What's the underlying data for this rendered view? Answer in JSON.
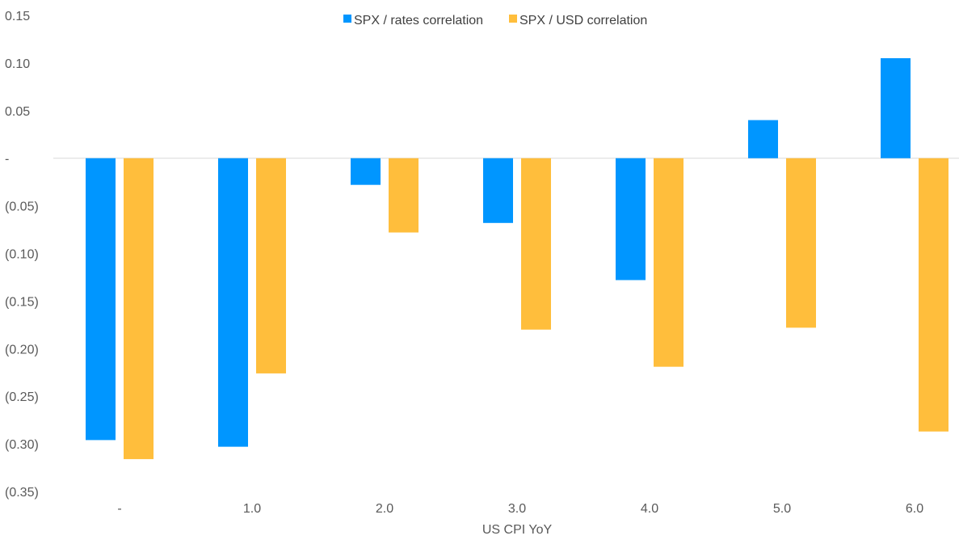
{
  "chart_data": {
    "type": "bar",
    "title": "",
    "xlabel": "US CPI YoY",
    "ylabel": "",
    "categories": [
      "-",
      "1.0",
      "2.0",
      "3.0",
      "4.0",
      "5.0",
      "6.0"
    ],
    "ylim": [
      -0.35,
      0.15
    ],
    "yticks": [
      0.15,
      0.1,
      0.05,
      0,
      -0.05,
      -0.1,
      -0.15,
      -0.2,
      -0.25,
      -0.3,
      -0.35
    ],
    "ytick_labels": [
      "0.15",
      "0.10",
      "0.05",
      "-",
      "(0.05)",
      "(0.10)",
      "(0.15)",
      "(0.20)",
      "(0.25)",
      "(0.30)",
      "(0.35)"
    ],
    "grid": false,
    "legend_position": "top-center",
    "series": [
      {
        "name": "SPX / rates correlation",
        "color": "#0096FF",
        "values": [
          -0.296,
          -0.303,
          -0.028,
          -0.068,
          -0.128,
          0.04,
          0.105
        ]
      },
      {
        "name": "SPX / USD correlation",
        "color": "#FFBE3C",
        "values": [
          -0.316,
          -0.226,
          -0.078,
          -0.18,
          -0.219,
          -0.178,
          -0.287
        ]
      }
    ]
  }
}
